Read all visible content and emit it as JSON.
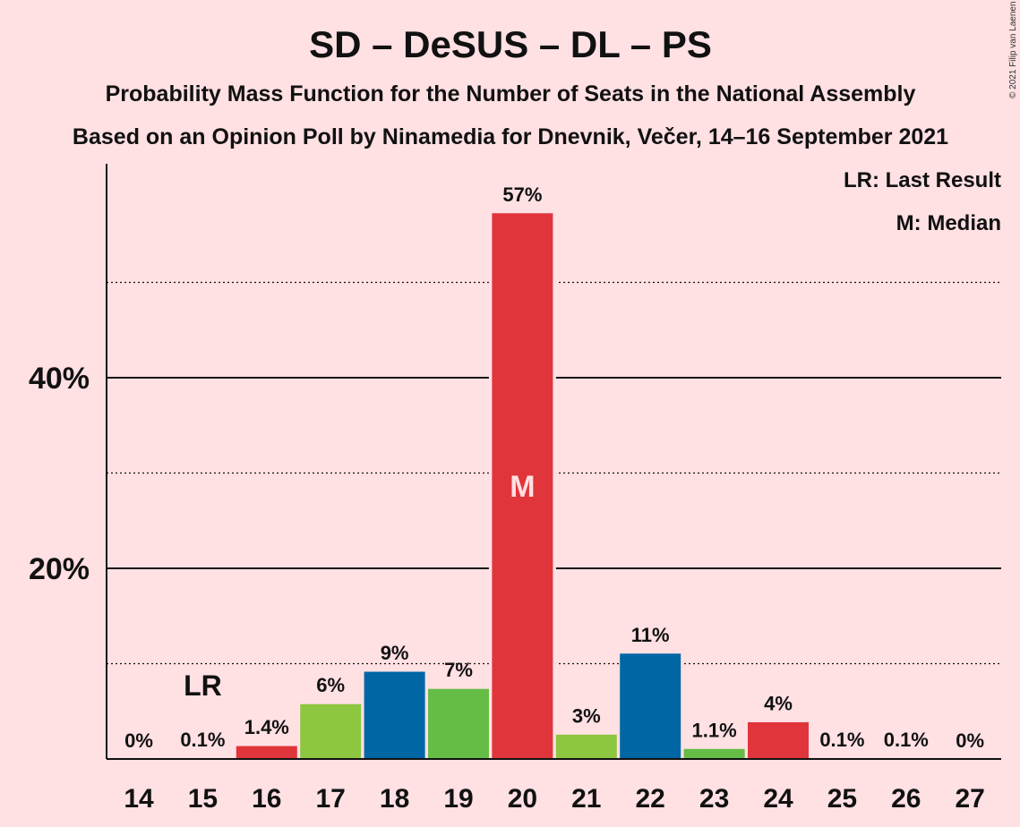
{
  "chart_data": {
    "type": "bar",
    "title": "SD – DeSUS – DL – PS",
    "subtitle": "Probability Mass Function for the Number of Seats in the National Assembly",
    "subtitle2": "Based on an Opinion Poll by Ninamedia for Dnevnik, Večer, 14–16 September 2021",
    "copyright": "© 2021 Filip van Laenen",
    "legend": {
      "lr": "LR: Last Result",
      "m": "M: Median",
      "placement": "top-right"
    },
    "categories": [
      "14",
      "15",
      "16",
      "17",
      "18",
      "19",
      "20",
      "21",
      "22",
      "23",
      "24",
      "25",
      "26",
      "27"
    ],
    "values": [
      0,
      0.1,
      1.4,
      5.8,
      9.2,
      7.4,
      57.3,
      2.6,
      11.1,
      1.1,
      3.9,
      0.1,
      0.1,
      0
    ],
    "data_labels": [
      "0%",
      "0.1%",
      "1.4%",
      "6%",
      "9%",
      "7%",
      "57%",
      "3%",
      "11%",
      "1.1%",
      "4%",
      "0.1%",
      "0.1%",
      "0%"
    ],
    "colors": [
      "#E0353A",
      "#E0353A",
      "#E0353A",
      "#8DC63F",
      "#0066A4",
      "#65BD46",
      "#E0353A",
      "#8DC63F",
      "#0066A4",
      "#65BD46",
      "#E0353A",
      "#8DC63F",
      "#0066A4",
      "#65BD46"
    ],
    "ylim": [
      0,
      62
    ],
    "yticks": [
      {
        "value": 20,
        "label": "20%"
      },
      {
        "value": 40,
        "label": "40%"
      }
    ],
    "dotted_gridlines": [
      10,
      30,
      50
    ],
    "last_result": {
      "category": "15",
      "label": "LR"
    },
    "median": {
      "category": "20",
      "label": "M"
    }
  }
}
